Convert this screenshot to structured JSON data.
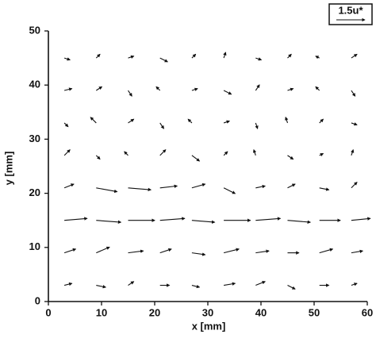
{
  "chart_data": {
    "type": "quiver",
    "xlabel": "x [mm]",
    "ylabel": "y [mm]",
    "xlim": [
      0,
      60
    ],
    "ylim": [
      0,
      50
    ],
    "xticks": [
      0,
      10,
      20,
      30,
      40,
      50,
      60
    ],
    "yticks": [
      0,
      10,
      20,
      30,
      40,
      50
    ],
    "color": "#111111",
    "reference_label": "1.5u*",
    "reference_value": 1.5,
    "x": [
      3,
      9,
      15,
      21,
      27,
      33,
      39,
      45,
      51,
      57,
      3,
      9,
      15,
      21,
      27,
      33,
      39,
      45,
      51,
      57,
      3,
      9,
      15,
      21,
      27,
      33,
      39,
      45,
      51,
      57,
      3,
      9,
      15,
      21,
      27,
      33,
      39,
      45,
      51,
      57,
      3,
      9,
      15,
      21,
      27,
      33,
      39,
      45,
      51,
      57,
      3,
      9,
      15,
      21,
      27,
      33,
      39,
      45,
      51,
      57,
      3,
      9,
      15,
      21,
      27,
      33,
      39,
      45,
      51,
      57,
      3,
      9,
      15,
      21,
      27,
      33,
      39,
      45,
      51,
      57
    ],
    "y": [
      3,
      3,
      3,
      3,
      3,
      3,
      3,
      3,
      3,
      3,
      9,
      9,
      9,
      9,
      9,
      9,
      9,
      9,
      9,
      9,
      15,
      15,
      15,
      15,
      15,
      15,
      15,
      15,
      15,
      15,
      21,
      21,
      21,
      21,
      21,
      21,
      21,
      21,
      21,
      21,
      27,
      27,
      27,
      27,
      27,
      27,
      27,
      27,
      27,
      27,
      33,
      33,
      33,
      33,
      33,
      33,
      33,
      33,
      33,
      33,
      39,
      39,
      39,
      39,
      39,
      39,
      39,
      39,
      39,
      39,
      45,
      45,
      45,
      45,
      45,
      45,
      45,
      45,
      45,
      45
    ],
    "u": [
      0.4,
      0.5,
      0.3,
      0.5,
      0.4,
      0.6,
      0.5,
      0.4,
      0.5,
      0.3,
      0.6,
      0.7,
      0.8,
      0.6,
      0.7,
      0.8,
      0.7,
      0.6,
      0.7,
      0.6,
      1.2,
      1.3,
      1.4,
      1.3,
      1.2,
      1.4,
      1.3,
      1.2,
      1.1,
      1.0,
      0.5,
      1.1,
      1.2,
      0.9,
      0.7,
      0.6,
      0.5,
      0.4,
      0.5,
      0.3,
      0.3,
      0.2,
      -0.2,
      0.3,
      0.4,
      0.2,
      -0.1,
      0.3,
      0.2,
      0.1,
      0.2,
      -0.3,
      0.3,
      0.2,
      -0.2,
      0.3,
      0.1,
      -0.1,
      0.2,
      0.3,
      0.4,
      0.3,
      0.2,
      -0.2,
      0.3,
      0.4,
      0.2,
      0.3,
      -0.2,
      0.2,
      0.3,
      0.2,
      0.3,
      0.4,
      0.2,
      0.1,
      0.3,
      0.2,
      -0.2,
      0.3
    ],
    "v": [
      0.1,
      -0.1,
      0.2,
      0.0,
      -0.1,
      0.1,
      0.2,
      -0.2,
      0.0,
      0.1,
      0.2,
      0.3,
      0.1,
      0.2,
      -0.1,
      0.2,
      0.1,
      0.0,
      0.2,
      0.1,
      0.1,
      -0.1,
      0.0,
      0.1,
      -0.1,
      0.0,
      0.1,
      -0.1,
      0.0,
      0.1,
      0.2,
      -0.2,
      -0.1,
      0.1,
      0.2,
      -0.3,
      0.1,
      0.2,
      -0.1,
      0.3,
      0.3,
      -0.2,
      0.2,
      0.3,
      -0.3,
      0.2,
      0.3,
      -0.2,
      0.1,
      0.3,
      -0.2,
      0.3,
      0.2,
      -0.3,
      0.2,
      0.1,
      -0.3,
      0.3,
      0.2,
      -0.1,
      0.1,
      0.2,
      -0.3,
      0.2,
      0.1,
      -0.2,
      0.3,
      0.1,
      0.2,
      -0.3,
      -0.1,
      0.2,
      0.1,
      -0.2,
      0.2,
      0.3,
      -0.1,
      0.2,
      0.1,
      0.2
    ]
  }
}
